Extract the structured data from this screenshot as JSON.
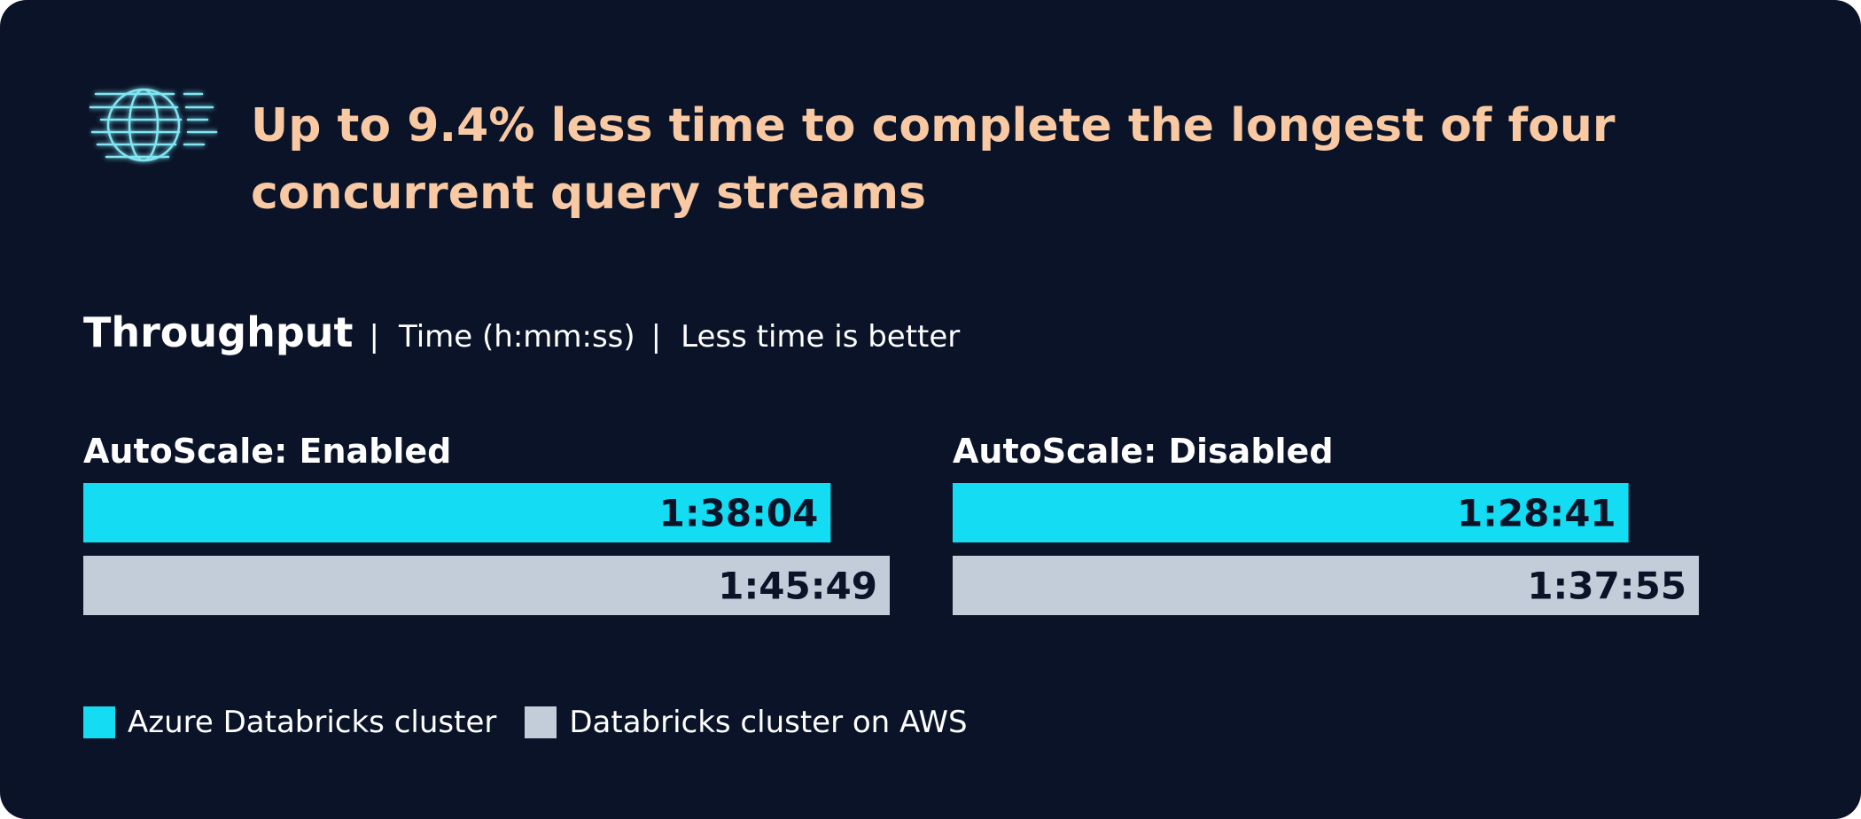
{
  "headline": "Up to 9.4% less time to complete the longest of four concurrent query streams",
  "colors": {
    "background": "#0a1328",
    "headline": "#f8c9a2",
    "azure": "#14dcf2",
    "aws": "#c2cdd9",
    "icon": "#7fe6f2"
  },
  "icon": "globe-speed-icon",
  "chart_data": {
    "type": "bar",
    "orientation": "horizontal",
    "title": "Throughput",
    "subtitle_parts": [
      "Time (h:mm:ss)",
      "Less time is better"
    ],
    "unit": "h:mm:ss",
    "legend": {
      "placement": "bottom-left",
      "entries": [
        "Azure Databricks cluster",
        "Databricks cluster on AWS"
      ]
    },
    "series": [
      {
        "name": "Azure Databricks cluster",
        "color": "#14dcf2"
      },
      {
        "name": "Databricks cluster on AWS",
        "color": "#c2cdd9"
      }
    ],
    "panels": [
      {
        "title": "AutoScale: Enabled",
        "values_seconds": [
          5884,
          6349
        ],
        "labels": [
          "1:38:04",
          "1:45:49"
        ]
      },
      {
        "title": "AutoScale: Disabled",
        "values_seconds": [
          5321,
          5875
        ],
        "labels": [
          "1:28:41",
          "1:37:55"
        ]
      }
    ],
    "xlim_seconds": [
      0,
      6349
    ],
    "grid": false
  }
}
